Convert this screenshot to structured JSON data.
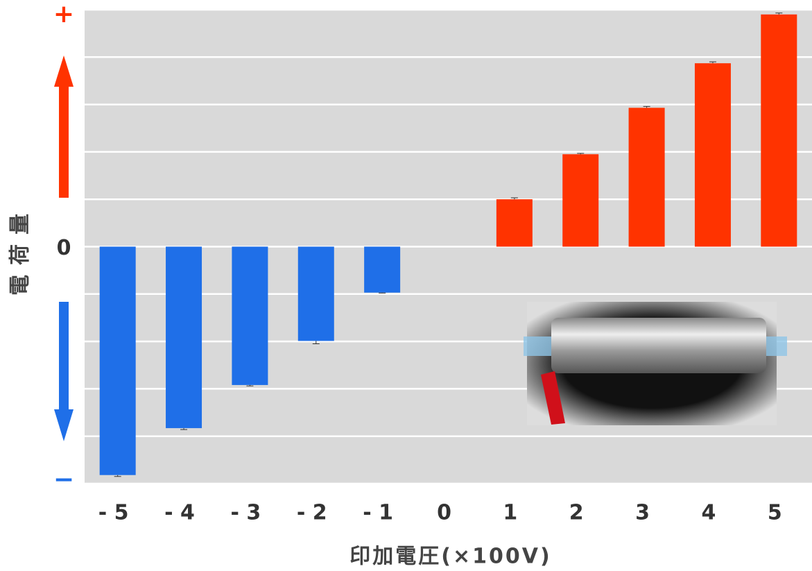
{
  "chart_data": {
    "type": "bar",
    "y_label": "電荷量",
    "x_label": "印加電圧(×100V)",
    "categories": [
      "- 5",
      "- 4",
      "- 3",
      "- 2",
      "- 1",
      "0",
      "1",
      "2",
      "3",
      "4",
      "5"
    ],
    "values": [
      -4.82,
      -3.83,
      -2.92,
      -1.99,
      -0.97,
      0,
      1.0,
      1.95,
      2.93,
      3.87,
      4.9
    ],
    "errors": [
      0.03,
      0.03,
      0.02,
      0.06,
      0.01,
      0,
      0.03,
      0.02,
      0.03,
      0.03,
      0.03
    ],
    "colors": [
      "#1f6fe8",
      "#1f6fe8",
      "#1f6fe8",
      "#1f6fe8",
      "#1f6fe8",
      "#1f6fe8",
      "#ff3300",
      "#ff3300",
      "#ff3300",
      "#ff3300",
      "#ff3300"
    ],
    "ylim": [
      -5,
      5
    ],
    "yticks": [
      {
        "value": -5,
        "label": "−"
      },
      0,
      {
        "value": 5,
        "label": "+"
      }
    ],
    "minor_yticks": [
      -4,
      -3,
      -2,
      -1,
      1,
      2,
      3,
      4
    ],
    "grid": true
  }
}
